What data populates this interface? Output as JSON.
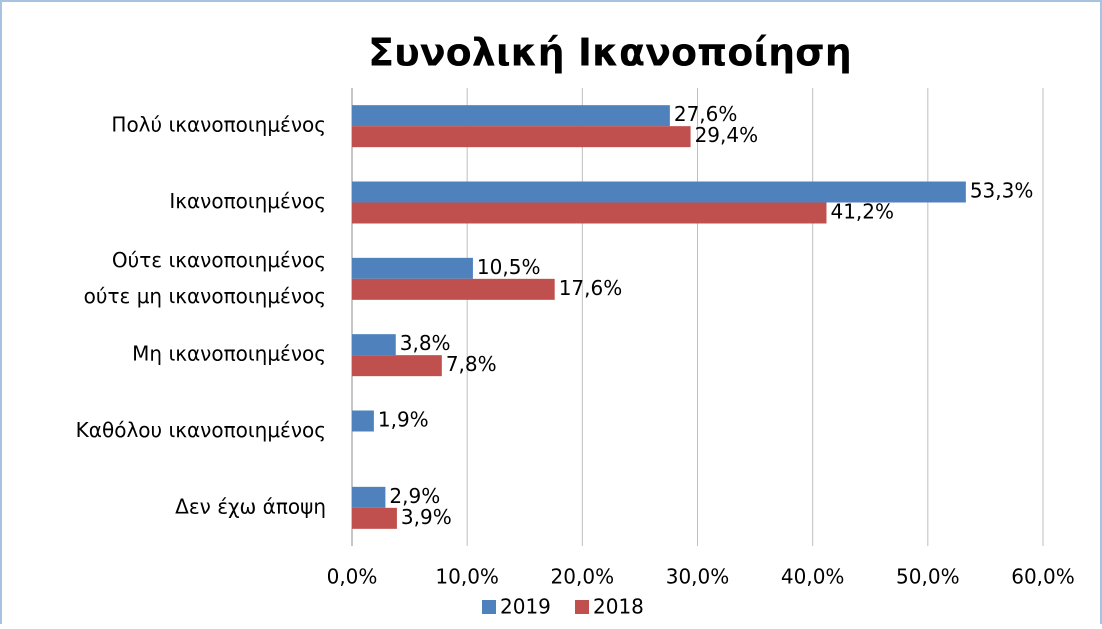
{
  "chart_data": {
    "type": "bar",
    "orientation": "horizontal",
    "title": "Συνολική Ικανοποίηση",
    "categories": [
      "Πολύ ικανοποιημένος",
      "Ικανοποιημένος",
      "Ούτε ικανοποιημένος\nούτε μη ικανοποιημένος",
      "Μη ικανοποιημένος",
      "Καθόλου ικανοποιημένος",
      "Δεν έχω άποψη"
    ],
    "series": [
      {
        "name": "2019",
        "color": "#4f81bd",
        "values": [
          27.6,
          53.3,
          10.5,
          3.8,
          1.9,
          2.9
        ],
        "value_labels": [
          "27,6%",
          "53,3%",
          "10,5%",
          "3,8%",
          "1,9%",
          "2,9%"
        ]
      },
      {
        "name": "2018",
        "color": "#c0504d",
        "values": [
          29.4,
          41.2,
          17.6,
          7.8,
          null,
          3.9
        ],
        "value_labels": [
          "29,4%",
          "41,2%",
          "17,6%",
          "7,8%",
          null,
          "3,9%"
        ]
      }
    ],
    "xlim": [
      0,
      60
    ],
    "xticks": [
      {
        "value": 0,
        "label": "0,0%"
      },
      {
        "value": 10,
        "label": "10,0%"
      },
      {
        "value": 20,
        "label": "20,0%"
      },
      {
        "value": 30,
        "label": "30,0%"
      },
      {
        "value": 40,
        "label": "40,0%"
      },
      {
        "value": 50,
        "label": "50,0%"
      },
      {
        "value": 60,
        "label": "60,0%"
      }
    ],
    "grid": true,
    "legend": "bottom"
  }
}
